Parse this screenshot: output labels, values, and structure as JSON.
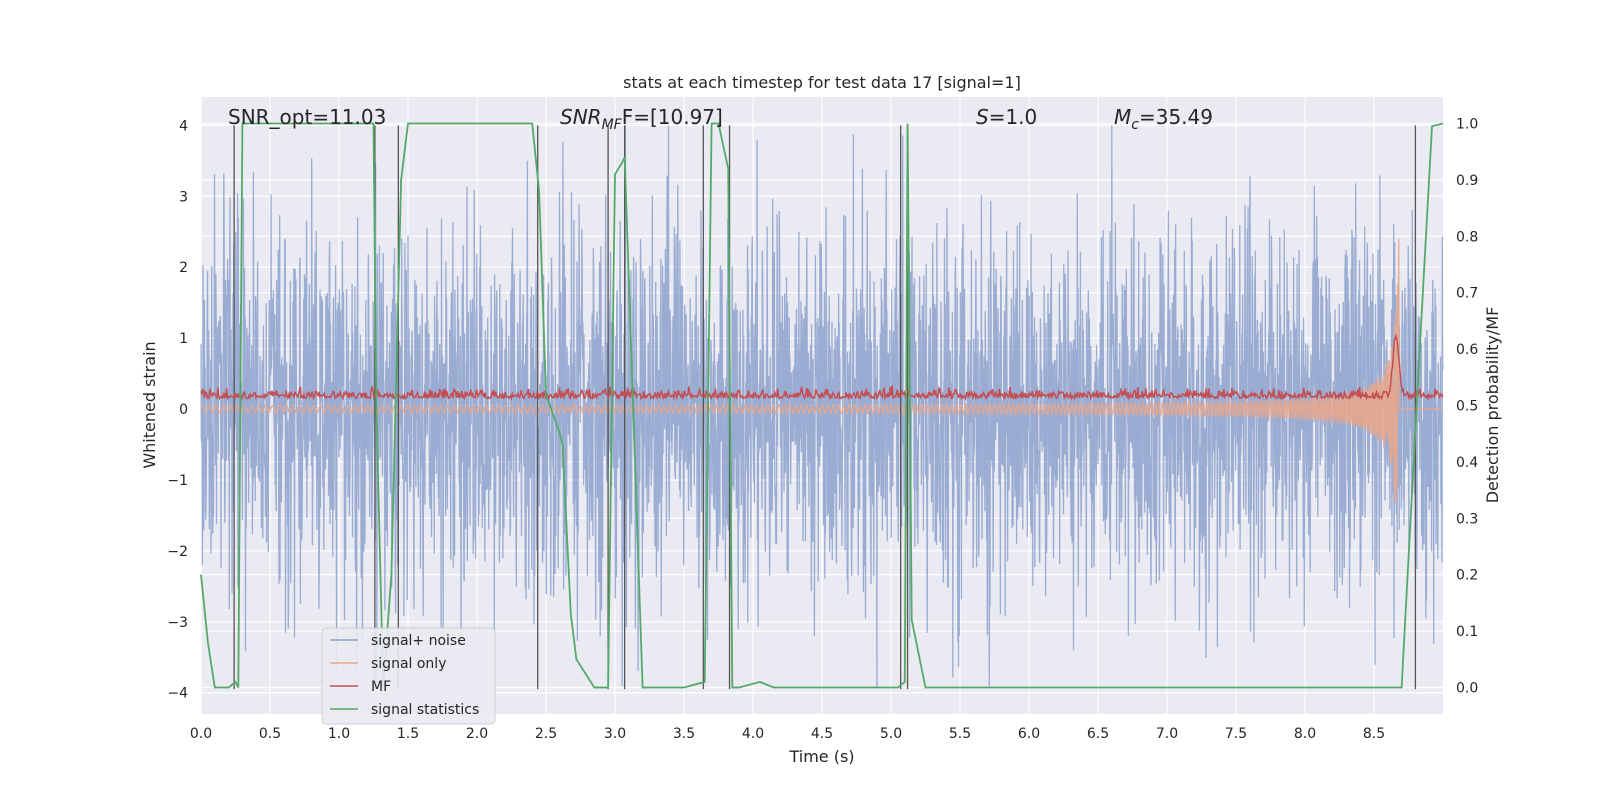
{
  "chart_data": {
    "type": "line",
    "title": "stats at each timestep for test data 17 [signal=1]",
    "xlabel": "Time (s)",
    "ylabel": "Whitened strain",
    "y2label": "Detection probability/MF",
    "xlim": [
      0.0,
      9.0
    ],
    "ylim": [
      -4.3,
      4.4
    ],
    "y2lim": [
      -0.047,
      1.047
    ],
    "xticks": [
      0.0,
      0.5,
      1.0,
      1.5,
      2.0,
      2.5,
      3.0,
      3.5,
      4.0,
      4.5,
      5.0,
      5.5,
      6.0,
      6.5,
      7.0,
      7.5,
      8.0,
      8.5
    ],
    "xtick_labels": [
      "0.0",
      "0.5",
      "1.0",
      "1.5",
      "2.0",
      "2.5",
      "3.0",
      "3.5",
      "4.0",
      "4.5",
      "5.0",
      "5.5",
      "6.0",
      "6.5",
      "7.0",
      "7.5",
      "8.0",
      "8.5"
    ],
    "yticks": [
      -4,
      -3,
      -2,
      -1,
      0,
      1,
      2,
      3,
      4
    ],
    "ytick_labels": [
      "−4",
      "−3",
      "−2",
      "−1",
      "0",
      "1",
      "2",
      "3",
      "4"
    ],
    "y2ticks": [
      0.0,
      0.1,
      0.2,
      0.3,
      0.4,
      0.5,
      0.6,
      0.7,
      0.8,
      0.9,
      1.0
    ],
    "y2tick_labels": [
      "0.0",
      "0.1",
      "0.2",
      "0.3",
      "0.4",
      "0.5",
      "0.6",
      "0.7",
      "0.8",
      "0.9",
      "1.0"
    ],
    "grid": true,
    "legend_position": "lower-left",
    "annotations": {
      "snr_opt": "SNR_opt=11.03",
      "snr_mf_main": "SNR",
      "snr_mf_sub": "MF",
      "snr_mf_value": "F=[10.97]",
      "s_label": "S",
      "s_value": "=1.0",
      "mc_label": "M",
      "mc_sub": "c",
      "mc_value": "=35.49"
    },
    "series": [
      {
        "name": "signal+ noise",
        "color": "#8ca1cd",
        "axis": "left",
        "description": "whitened strain noise, approx. std 1.2, range about -4 to 4"
      },
      {
        "name": "signal only",
        "color": "#e8a68c",
        "axis": "left",
        "description": "chirp signal growing from ~0 to amplitude ~2.7 at t=8.65, ending ~8.7"
      },
      {
        "name": "MF",
        "color": "#c44e52",
        "axis": "left",
        "description": "matched filter output around 0.15 with small fluctuations, peak ~1.0 at 8.65"
      },
      {
        "name": "signal statistics",
        "color": "#55a868",
        "axis": "right",
        "x": [
          0.0,
          0.05,
          0.1,
          0.2,
          0.25,
          0.27,
          0.3,
          0.35,
          1.0,
          1.25,
          1.27,
          1.32,
          1.38,
          1.45,
          1.5,
          1.6,
          2.0,
          2.4,
          2.45,
          2.5,
          2.6,
          2.62,
          2.68,
          2.72,
          2.85,
          2.95,
          3.0,
          3.05,
          3.07,
          3.2,
          3.3,
          3.5,
          3.65,
          3.7,
          3.75,
          3.82,
          3.85,
          3.9,
          4.05,
          4.15,
          4.5,
          5.05,
          5.1,
          5.12,
          5.15,
          5.25,
          6.0,
          7.0,
          8.0,
          8.7,
          8.82,
          8.92,
          9.0
        ],
        "y": [
          0.2,
          0.08,
          0.0,
          0.0,
          0.01,
          0.0,
          1.0,
          1.0,
          1.0,
          1.0,
          0.5,
          0.0,
          0.2,
          0.9,
          1.0,
          1.0,
          1.0,
          1.0,
          0.88,
          0.52,
          0.45,
          0.43,
          0.13,
          0.05,
          0.0,
          0.0,
          0.91,
          0.93,
          0.94,
          0.0,
          0.0,
          0.0,
          0.01,
          1.0,
          1.0,
          0.92,
          0.0,
          0.0,
          0.01,
          0.0,
          0.0,
          0.0,
          0.01,
          1.0,
          0.12,
          0.0,
          0.0,
          0.0,
          0.0,
          0.0,
          0.55,
          0.995,
          1.0
        ]
      }
    ],
    "vertical_lines": [
      0.24,
      1.26,
      1.43,
      2.44,
      2.95,
      3.07,
      3.64,
      3.83,
      5.07,
      5.12,
      8.8
    ]
  }
}
